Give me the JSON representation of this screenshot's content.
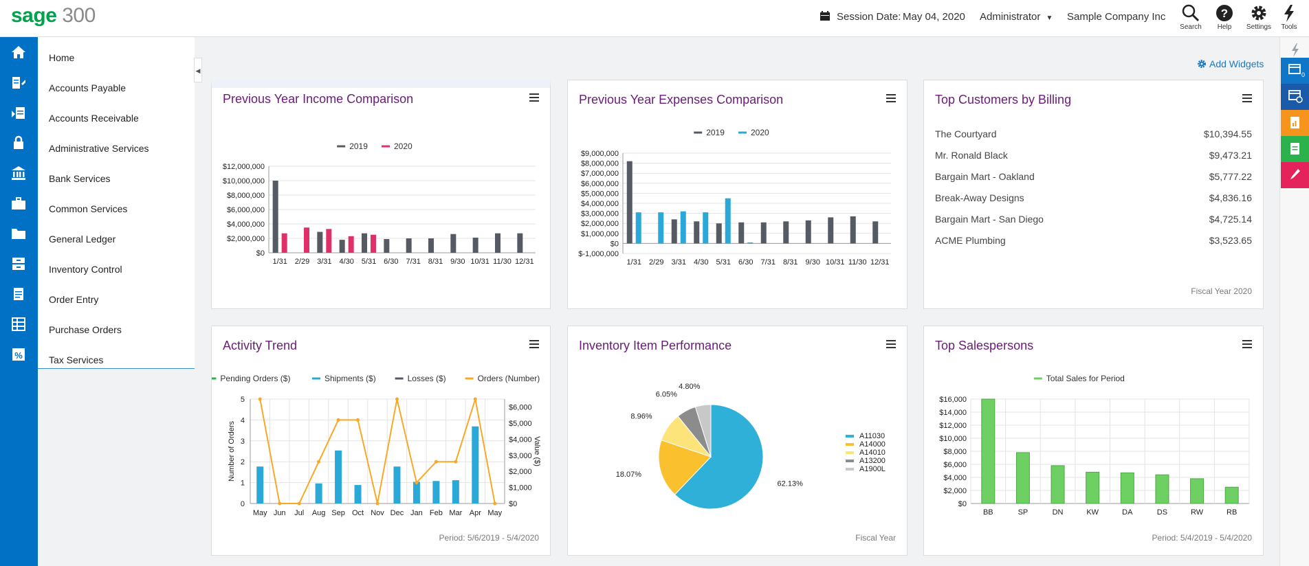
{
  "app": {
    "brand": "sage",
    "product": "300"
  },
  "header": {
    "session_label": "Session Date:",
    "session_date": "May 04, 2020",
    "user": "Administrator",
    "company": "Sample Company Inc",
    "tools": [
      {
        "label": "Search",
        "icon": "search-icon"
      },
      {
        "label": "Help",
        "icon": "help-icon"
      },
      {
        "label": "Settings",
        "icon": "gear-icon"
      },
      {
        "label": "Tools",
        "icon": "lightning-icon"
      }
    ]
  },
  "sidebar": {
    "items": [
      {
        "label": "Home",
        "icon": "home-icon"
      },
      {
        "label": "Accounts Payable",
        "icon": "accounts-payable-icon"
      },
      {
        "label": "Accounts Receivable",
        "icon": "accounts-receivable-icon"
      },
      {
        "label": "Administrative Services",
        "icon": "lock-icon"
      },
      {
        "label": "Bank Services",
        "icon": "bank-icon"
      },
      {
        "label": "Common Services",
        "icon": "briefcase-icon"
      },
      {
        "label": "General Ledger",
        "icon": "folder-icon"
      },
      {
        "label": "Inventory Control",
        "icon": "inventory-icon"
      },
      {
        "label": "Order Entry",
        "icon": "document-icon"
      },
      {
        "label": "Purchase Orders",
        "icon": "table-icon"
      },
      {
        "label": "Tax Services",
        "icon": "percent-icon"
      }
    ]
  },
  "right_rail": {
    "notification_count": "0",
    "items": [
      {
        "icon": "lightning-icon",
        "color": "#9aa0a6"
      },
      {
        "icon": "window-badge-icon",
        "color": "#0f76c8"
      },
      {
        "icon": "window-clock-icon",
        "color": "#1a5aa8"
      },
      {
        "icon": "report-icon",
        "color": "#f7941d"
      },
      {
        "icon": "document-icon",
        "color": "#2bb24c"
      },
      {
        "icon": "pen-icon",
        "color": "#e4235d"
      }
    ]
  },
  "add_widgets": "Add Widgets",
  "widgets": {
    "income": {
      "title": "Previous Year Income Comparison"
    },
    "expenses": {
      "title": "Previous Year Expenses Comparison"
    },
    "customers": {
      "title": "Top Customers by Billing",
      "footer": "Fiscal Year 2020",
      "rows": [
        {
          "name": "The Courtyard",
          "amount": "$10,394.55"
        },
        {
          "name": "Mr. Ronald Black",
          "amount": "$9,473.21"
        },
        {
          "name": "Bargain Mart - Oakland",
          "amount": "$5,777.22"
        },
        {
          "name": "Break-Away Designs",
          "amount": "$4,836.16"
        },
        {
          "name": "Bargain Mart - San Diego",
          "amount": "$4,725.14"
        },
        {
          "name": "ACME Plumbing",
          "amount": "$3,523.65"
        }
      ]
    },
    "activity": {
      "title": "Activity Trend",
      "footer": "Period: 5/6/2019 - 5/4/2020"
    },
    "inventory": {
      "title": "Inventory Item Performance",
      "footer": "Fiscal Year"
    },
    "salespersons": {
      "title": "Top Salespersons",
      "footer": "Period: 5/4/2019 - 5/4/2020"
    }
  },
  "chart_data": [
    {
      "id": "income",
      "type": "bar",
      "categories": [
        "1/31",
        "2/29",
        "3/31",
        "4/30",
        "5/31",
        "6/30",
        "7/31",
        "8/31",
        "9/30",
        "10/31",
        "11/30",
        "12/31"
      ],
      "series": [
        {
          "name": "2019",
          "color": "#555a63",
          "values": [
            10000000,
            0,
            2900000,
            1800000,
            2700000,
            1900000,
            2000000,
            2000000,
            2600000,
            2100000,
            2700000,
            2700000
          ]
        },
        {
          "name": "2020",
          "color": "#e0306a",
          "values": [
            2700000,
            3500000,
            3300000,
            2300000,
            2500000,
            0,
            0,
            0,
            0,
            0,
            0,
            0
          ]
        }
      ],
      "ylim": [
        0,
        12000000
      ],
      "yticks": [
        "$12,000,000",
        "$10,000,000",
        "$8,000,000",
        "$6,000,000",
        "$4,000,000",
        "$2,000,000",
        "$0"
      ],
      "legend": "top",
      "grid": true
    },
    {
      "id": "expenses",
      "type": "bar",
      "categories": [
        "1/31",
        "2/29",
        "3/31",
        "4/30",
        "5/31",
        "6/30",
        "7/31",
        "8/31",
        "9/30",
        "10/31",
        "11/30",
        "12/31"
      ],
      "series": [
        {
          "name": "2019",
          "color": "#555a63",
          "values": [
            8200000,
            0,
            2400000,
            2200000,
            2000000,
            2100000,
            2100000,
            2200000,
            2300000,
            2600000,
            2700000,
            2200000
          ]
        },
        {
          "name": "2020",
          "color": "#2aa8d8",
          "values": [
            3100000,
            3100000,
            3200000,
            3100000,
            4500000,
            100000,
            0,
            0,
            0,
            0,
            0,
            0
          ]
        }
      ],
      "ylim": [
        -1000000,
        9000000
      ],
      "yticks": [
        "$9,000,000",
        "$8,000,000",
        "$7,000,000",
        "$6,000,000",
        "$5,000,000",
        "$4,000,000",
        "$3,000,000",
        "$2,000,000",
        "$1,000,000",
        "$0",
        "$-1,000,000"
      ],
      "legend": "top",
      "grid": true
    },
    {
      "id": "activity",
      "type": "bar",
      "categories": [
        "May",
        "Jun",
        "Jul",
        "Aug",
        "Sep",
        "Oct",
        "Nov",
        "Dec",
        "Jan",
        "Feb",
        "Mar",
        "Apr",
        "May"
      ],
      "series": [
        {
          "name": "Pending Orders ($)",
          "color": "#2bb24c",
          "values": [
            0,
            0,
            0,
            0,
            0,
            0,
            0,
            0,
            0,
            0,
            0,
            0,
            0
          ]
        },
        {
          "name": "Shipments ($)",
          "color": "#2aa8d8",
          "values": [
            2300,
            0,
            0,
            1250,
            3300,
            1150,
            0,
            2300,
            1350,
            1400,
            1450,
            4800,
            0
          ]
        },
        {
          "name": "Losses ($)",
          "color": "#555a63",
          "values": [
            0,
            0,
            0,
            0,
            0,
            0,
            0,
            0,
            0,
            0,
            0,
            0,
            0
          ]
        },
        {
          "name": "Orders (Number)",
          "color": "#f9a825",
          "type": "line",
          "values": [
            5,
            0,
            0,
            2,
            4,
            4,
            0,
            5,
            1,
            2,
            2,
            5,
            0
          ]
        }
      ],
      "ylim_left": [
        0,
        5
      ],
      "ylim_right": [
        0,
        6500
      ],
      "ylabel_left": "Number of Orders",
      "ylabel_right": "Value ($)",
      "yticks_left": [
        "5",
        "4",
        "3",
        "2",
        "1",
        "0"
      ],
      "yticks_right": [
        "$6,000",
        "$5,000",
        "$4,000",
        "$3,000",
        "$2,000",
        "$1,000",
        "$0"
      ],
      "legend": "top",
      "grid": true
    },
    {
      "id": "inventory",
      "type": "pie",
      "labels": [
        "A11030",
        "A14000",
        "A14010",
        "A13200",
        "A1900L"
      ],
      "values": [
        62.13,
        18.07,
        8.96,
        6.05,
        4.8
      ],
      "value_labels": [
        "62.13%",
        "18.07%",
        "8.96%",
        "6.05%",
        "4.80%"
      ],
      "colors": [
        "#2fb0d8",
        "#fbc02d",
        "#fde47a",
        "#8c8c8c",
        "#c8c8c8"
      ],
      "legend": "right"
    },
    {
      "id": "salespersons",
      "type": "bar",
      "categories": [
        "BB",
        "SP",
        "DN",
        "KW",
        "DA",
        "DS",
        "RW",
        "RB"
      ],
      "series": [
        {
          "name": "Total Sales for Period",
          "color": "#6ecf63",
          "values": [
            16000,
            7800,
            5800,
            4800,
            4700,
            4400,
            3800,
            2500
          ]
        }
      ],
      "ylim": [
        0,
        16000
      ],
      "yticks": [
        "$16,000",
        "$14,000",
        "$12,000",
        "$10,000",
        "$8,000",
        "$6,000",
        "$4,000",
        "$2,000",
        "$0"
      ],
      "legend": "top",
      "grid": true
    }
  ]
}
